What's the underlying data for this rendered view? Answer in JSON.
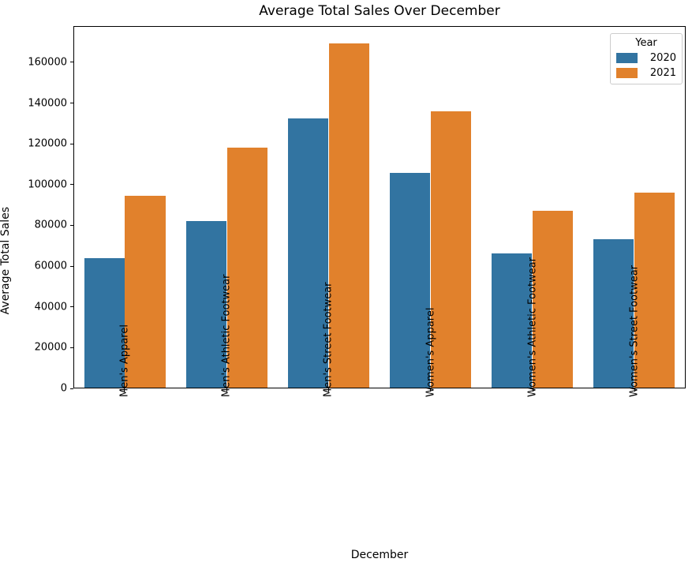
{
  "chart_data": {
    "type": "bar",
    "title": "Average Total Sales Over December",
    "xlabel": "December",
    "ylabel": "Average Total Sales",
    "categories": [
      "Men's Apparel",
      "Men's Athletic Footwear",
      "Men's Street Footwear",
      "Women's Apparel",
      "Women's Athletic Footwear",
      "Women's Street Footwear"
    ],
    "series": [
      {
        "name": "2020",
        "color": "#3274a1",
        "values": [
          63800,
          82000,
          132600,
          105800,
          66100,
          73200
        ]
      },
      {
        "name": "2021",
        "color": "#e1812c",
        "values": [
          94500,
          118400,
          169800,
          136200,
          87000,
          96200
        ]
      }
    ],
    "legend": {
      "title": "Year",
      "position": "upper right"
    },
    "ylim": [
      0,
      177800
    ],
    "yticks": [
      0,
      20000,
      40000,
      60000,
      80000,
      100000,
      120000,
      140000,
      160000
    ],
    "grid": false
  }
}
